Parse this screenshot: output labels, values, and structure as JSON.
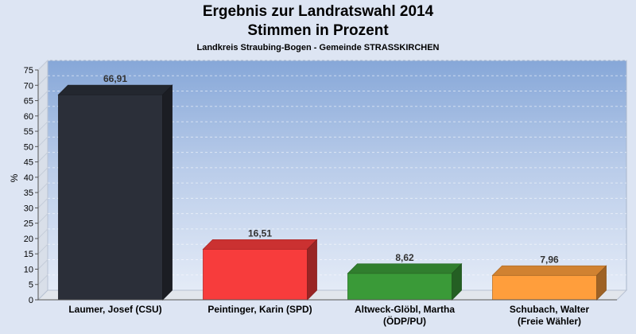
{
  "chart_data": {
    "type": "bar",
    "title": "Ergebnis zur Landratswahl 2014",
    "subtitle": "Stimmen in Prozent",
    "caption": "Landkreis Straubing-Bogen - Gemeinde STRASSKIRCHEN",
    "ylabel": "%",
    "xlabel": "",
    "ylim": [
      0,
      75
    ],
    "yticks": [
      0,
      5,
      10,
      15,
      20,
      25,
      30,
      35,
      40,
      45,
      50,
      55,
      60,
      65,
      70,
      75
    ],
    "grid": true,
    "categories": [
      [
        "Laumer, Josef (CSU)"
      ],
      [
        "Peintinger, Karin (SPD)"
      ],
      [
        "Altweck-Glöbl, Martha",
        "(ÖDP/PU)"
      ],
      [
        "Schubach, Walter",
        "(Freie Wähler)"
      ]
    ],
    "values": [
      66.91,
      16.51,
      8.62,
      7.96
    ],
    "value_labels": [
      "66,91",
      "16,51",
      "8,62",
      "7,96"
    ],
    "colors": [
      "#2b2f39",
      "#f73c3c",
      "#3a9a38",
      "#ff9e3c"
    ]
  }
}
